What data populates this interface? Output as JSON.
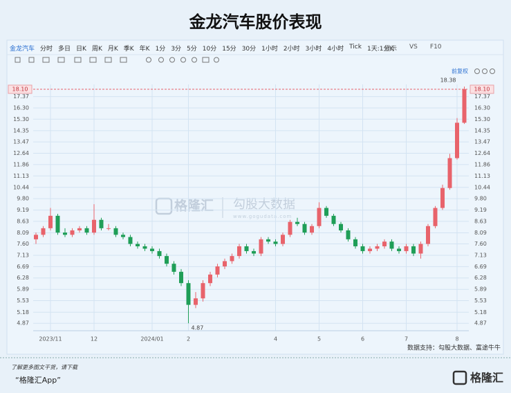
{
  "header": {
    "title": "金龙汽车股价表现"
  },
  "toolbar": {
    "items": [
      "金龙汽车",
      "分时",
      "多日",
      "日K",
      "周K",
      "月K",
      "季K",
      "年K",
      "1分",
      "3分",
      "5分",
      "10分",
      "15分",
      "30分",
      "1小时",
      "2小时",
      "3小时",
      "4小时",
      "Tick",
      "1天:1分K"
    ],
    "right_items": [
      "显示",
      "VS",
      "F10"
    ],
    "adjust": "前复权"
  },
  "watermark": {
    "brand": "格隆汇",
    "partner": "勾股大数据",
    "url": "www.gogudata.com"
  },
  "source": "数据支持：勾股大数据、富途牛牛",
  "footer": {
    "note": "了解更多图文干货，请下载",
    "app": "“格隆汇App”",
    "logo": "格隆汇"
  },
  "chart_data": {
    "type": "candlestick",
    "log": true,
    "grid": true,
    "up_color": "#e8636b",
    "down_color": "#1f9e57",
    "categories": [
      null,
      null,
      "2023/11",
      null,
      null,
      null,
      null,
      null,
      "12",
      null,
      null,
      null,
      null,
      null,
      null,
      null,
      "2024/01",
      null,
      null,
      null,
      null,
      "2",
      null,
      null,
      null,
      null,
      null,
      null,
      null,
      null,
      null,
      null,
      null,
      "4",
      null,
      null,
      null,
      null,
      null,
      "5",
      null,
      null,
      null,
      null,
      null,
      "6",
      null,
      null,
      null,
      null,
      null,
      "7",
      null,
      null,
      null,
      null,
      null,
      null,
      "8",
      null
    ],
    "open": [
      7.8,
      8.0,
      8.3,
      8.9,
      8.1,
      8.0,
      8.2,
      8.3,
      8.1,
      8.7,
      8.3,
      8.3,
      8.0,
      7.9,
      7.6,
      7.5,
      7.4,
      7.3,
      7.1,
      6.8,
      6.5,
      6.1,
      5.4,
      5.6,
      6.1,
      6.4,
      6.7,
      6.9,
      7.1,
      7.5,
      7.3,
      7.2,
      7.8,
      7.7,
      7.6,
      8.0,
      8.6,
      8.5,
      8.1,
      8.4,
      9.3,
      8.9,
      8.5,
      8.2,
      7.8,
      7.5,
      7.3,
      7.4,
      7.5,
      7.7,
      7.4,
      7.3,
      7.5,
      7.2,
      7.6,
      8.4,
      9.3,
      10.4,
      12.3,
      15.0
    ],
    "high": [
      8.1,
      8.4,
      9.3,
      9.0,
      8.3,
      8.3,
      8.4,
      8.4,
      9.5,
      8.8,
      8.5,
      8.4,
      8.1,
      8.0,
      7.7,
      7.6,
      7.5,
      7.4,
      7.2,
      6.9,
      6.6,
      6.2,
      5.8,
      6.2,
      6.5,
      6.8,
      7.0,
      7.2,
      7.6,
      7.6,
      7.4,
      7.9,
      7.9,
      7.8,
      8.1,
      8.7,
      8.8,
      8.6,
      8.5,
      9.6,
      9.4,
      9.0,
      8.6,
      8.3,
      7.9,
      7.6,
      7.5,
      7.6,
      7.8,
      7.8,
      7.5,
      7.6,
      7.6,
      7.7,
      8.5,
      9.4,
      10.6,
      12.6,
      15.4,
      18.38
    ],
    "low": [
      7.6,
      7.9,
      8.2,
      8.0,
      7.9,
      7.9,
      8.1,
      8.0,
      8.0,
      8.2,
      8.2,
      7.9,
      7.8,
      7.5,
      7.4,
      7.3,
      7.2,
      7.0,
      6.7,
      6.4,
      6.0,
      4.87,
      5.3,
      5.5,
      6.0,
      6.3,
      6.6,
      6.8,
      7.0,
      7.2,
      7.1,
      7.1,
      7.6,
      7.5,
      7.5,
      7.9,
      8.4,
      8.0,
      8.0,
      8.3,
      8.8,
      8.4,
      8.1,
      7.7,
      7.4,
      7.2,
      7.2,
      7.3,
      7.4,
      7.3,
      7.2,
      7.2,
      7.1,
      7.0,
      7.5,
      8.3,
      9.2,
      10.3,
      12.2,
      14.9
    ],
    "close": [
      8.0,
      8.3,
      8.9,
      8.1,
      8.0,
      8.2,
      8.3,
      8.1,
      8.7,
      8.3,
      8.3,
      8.0,
      7.9,
      7.6,
      7.5,
      7.4,
      7.3,
      7.1,
      6.8,
      6.5,
      6.1,
      5.4,
      5.6,
      6.1,
      6.4,
      6.7,
      6.9,
      7.1,
      7.5,
      7.3,
      7.2,
      7.8,
      7.7,
      7.6,
      8.0,
      8.6,
      8.5,
      8.1,
      8.4,
      9.3,
      8.9,
      8.5,
      8.2,
      7.8,
      7.5,
      7.3,
      7.4,
      7.5,
      7.7,
      7.4,
      7.3,
      7.5,
      7.2,
      7.6,
      8.4,
      9.3,
      10.4,
      12.3,
      15.0,
      18.1
    ],
    "ylim": [
      4.67,
      18.6
    ],
    "yticks": [
      17.37,
      {
        "value": 16.3,
        "label": "16.30"
      },
      {
        "value": 15.3,
        "label": "15.30"
      },
      14.35,
      13.47,
      12.64,
      11.86,
      11.13,
      10.44,
      {
        "value": 9.8,
        "label": "9.80"
      },
      9.19,
      8.63,
      8.09,
      {
        "value": 7.6,
        "label": "7.60"
      },
      7.13,
      6.69,
      6.28,
      5.89,
      5.53,
      5.18,
      4.87
    ],
    "current_price": {
      "value": 18.1,
      "label": "18.10"
    }
  }
}
